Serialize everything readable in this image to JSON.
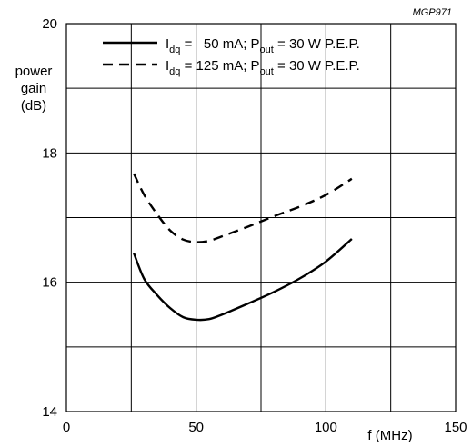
{
  "chart_data": {
    "type": "line",
    "reference": "MGP971",
    "ylabel_lines": [
      "power",
      "gain",
      "(dB)"
    ],
    "xlabel": "f (MHz)",
    "xlim": [
      0,
      150
    ],
    "ylim": [
      14,
      20
    ],
    "x_ticks": [
      {
        "value": 0,
        "label": "0"
      },
      {
        "value": 50,
        "label": "50"
      },
      {
        "value": 100,
        "label": "100"
      },
      {
        "value": 150,
        "label": "150"
      }
    ],
    "y_ticks": [
      {
        "value": 14,
        "label": "14"
      },
      {
        "value": 16,
        "label": "16"
      },
      {
        "value": 18,
        "label": "18"
      },
      {
        "value": 20,
        "label": "20"
      }
    ],
    "grid": {
      "x_step": 25,
      "y_step": 1,
      "visible": true
    },
    "legend_position": "top",
    "legend": [
      {
        "series": 0,
        "label_prefix": "I",
        "label_sub": "dq",
        "label_mid": " =   50 mA; P",
        "label_sub2": "out",
        "label_suffix": " = 30 W P.E.P."
      },
      {
        "series": 1,
        "label_prefix": "I",
        "label_sub": "dq",
        "label_mid": " = 125 mA; P",
        "label_sub2": "out",
        "label_suffix": " = 30 W P.E.P."
      }
    ],
    "series": [
      {
        "name": "Idq = 50 mA; Pout = 30 W P.E.P.",
        "style": "solid",
        "color": "#000000",
        "x": [
          26,
          30,
          35,
          40,
          45,
          50,
          55,
          60,
          70,
          80,
          90,
          100,
          110
        ],
        "y": [
          16.45,
          16.05,
          15.8,
          15.6,
          15.46,
          15.42,
          15.43,
          15.5,
          15.67,
          15.85,
          16.06,
          16.32,
          16.67
        ]
      },
      {
        "name": "Idq = 125 mA; Pout = 30 W P.E.P.",
        "style": "dashed",
        "color": "#000000",
        "x": [
          26,
          30,
          35,
          40,
          45,
          50,
          55,
          60,
          70,
          80,
          90,
          100,
          110
        ],
        "y": [
          17.68,
          17.35,
          17.05,
          16.8,
          16.66,
          16.62,
          16.64,
          16.71,
          16.86,
          17.02,
          17.17,
          17.35,
          17.6
        ]
      }
    ]
  }
}
